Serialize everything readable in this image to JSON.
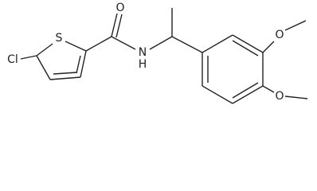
{
  "atoms": [
    {
      "label": "Cl"
    },
    {
      "label": "S"
    },
    {
      "label": "O"
    },
    {
      "label": "N"
    },
    {
      "label": "H"
    },
    {
      "label": "O"
    },
    {
      "label": "O"
    }
  ]
}
